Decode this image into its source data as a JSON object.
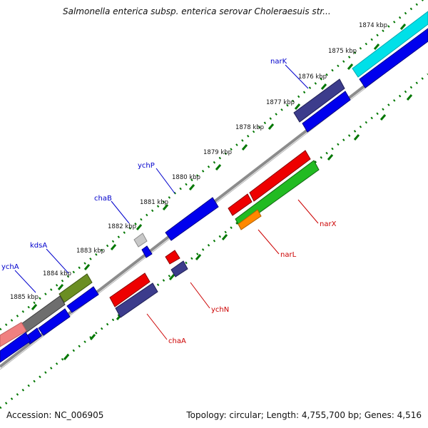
{
  "header": {
    "title": "Salmonella enterica subsp. enterica serovar Choleraesuis str..."
  },
  "footer": {
    "accession": "Accession: NC_006905",
    "summary": "Topology: circular; Length: 4,755,700 bp; Genes: 4,516"
  },
  "map": {
    "tick_labels": [
      "1874 kbp",
      "1875 kbp",
      "1876 kbp",
      "1877 kbp",
      "1878 kbp",
      "1879 kbp",
      "1880 kbp",
      "1881 kbp",
      "1882 kbp",
      "1883 kbp",
      "1884 kbp",
      "1885 kbp"
    ],
    "forward_gene_labels": [
      "narK",
      "ychP",
      "chaB",
      "kdsA",
      "ychA"
    ],
    "reverse_gene_labels": [
      "narX",
      "narL",
      "ychN",
      "chaA"
    ]
  },
  "colors": {
    "forward_cds": "#0000ee",
    "reverse_cds": "#ee0000",
    "dark_cds": "#3c3c8c",
    "cyan_feature": "#00e0e8",
    "green_feature": "#22bb22",
    "orange_feature": "#ff8800",
    "olive_feature": "#6b8e23",
    "gray_feature": "#6e6e6e",
    "pink_feature": "#f08080",
    "tick_green": "#007700",
    "backbone": "#8c8c8c",
    "forward_label": "#0000cc",
    "reverse_label": "#cc0000"
  }
}
